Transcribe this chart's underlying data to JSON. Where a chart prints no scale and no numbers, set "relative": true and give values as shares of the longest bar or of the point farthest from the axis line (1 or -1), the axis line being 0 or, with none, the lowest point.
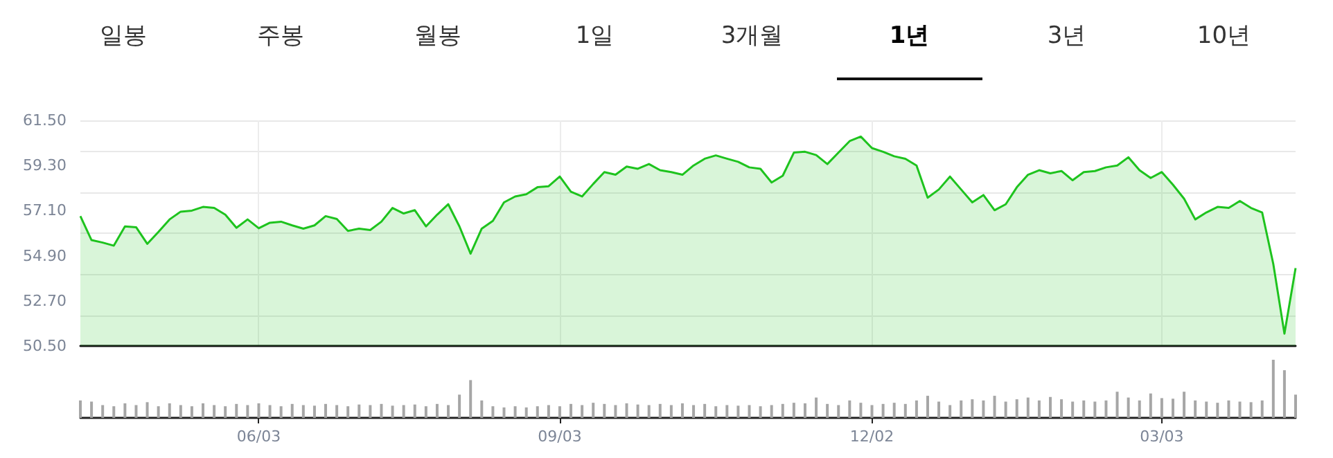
{
  "chart_data": [
    {
      "type": "area",
      "annotations": [
        "일봉",
        "주봉",
        "월봉",
        "1일",
        "3개월",
        "1년",
        "3년",
        "10년"
      ],
      "categories": [
        null,
        null,
        null,
        null,
        null,
        null,
        null,
        null,
        null,
        null,
        null,
        null,
        null,
        null,
        null,
        null,
        null,
        null,
        null,
        null,
        null,
        null,
        null,
        null,
        null,
        null,
        null,
        null,
        null,
        null,
        null,
        null,
        null,
        null,
        null,
        null,
        null,
        null,
        null,
        null,
        null,
        null,
        null,
        null,
        null,
        null,
        null,
        null,
        null,
        null,
        null,
        null,
        null,
        null,
        null,
        null,
        null,
        null,
        null,
        null,
        null,
        null,
        null,
        null,
        null,
        null,
        null,
        null,
        null,
        null,
        null,
        null,
        null,
        null,
        null,
        null,
        null,
        null,
        null,
        null,
        null,
        null,
        null,
        null,
        null,
        null,
        null,
        null,
        null,
        null,
        null,
        null,
        null,
        null,
        null,
        null,
        null,
        null,
        null,
        null,
        null,
        null,
        null,
        null,
        null,
        null,
        null,
        null,
        null,
        null
      ],
      "series": [
        {
          "color": "#1ec31e",
          "values": [
            56.83,
            55.66,
            55.54,
            55.39,
            56.33,
            56.29,
            55.48,
            56.06,
            56.67,
            57.05,
            57.1,
            57.28,
            57.23,
            56.9,
            56.26,
            56.67,
            56.24,
            56.51,
            56.56,
            56.38,
            56.22,
            56.38,
            56.83,
            56.69,
            56.11,
            56.22,
            56.15,
            56.56,
            57.23,
            56.96,
            57.12,
            56.33,
            56.9,
            57.41,
            56.33,
            55.0,
            56.22,
            56.6,
            57.5,
            57.79,
            57.9,
            58.24,
            58.29,
            58.76,
            58.02,
            57.79,
            58.4,
            58.98,
            58.85,
            59.25,
            59.14,
            59.37,
            59.07,
            58.98,
            58.85,
            59.3,
            59.63,
            59.79,
            59.63,
            59.48,
            59.21,
            59.14,
            58.47,
            58.8,
            59.93,
            59.97,
            59.81,
            59.37,
            59.93,
            60.49,
            60.71,
            60.15,
            59.97,
            59.75,
            59.63,
            59.3,
            57.73,
            58.13,
            58.76,
            58.13,
            57.5,
            57.86,
            57.12,
            57.41,
            58.24,
            58.85,
            59.07,
            58.92,
            59.03,
            58.58,
            58.98,
            59.03,
            59.21,
            59.3,
            59.7,
            59.07,
            58.69,
            58.98,
            58.36,
            57.68,
            56.67,
            57.01,
            57.28,
            57.23,
            57.57,
            57.23,
            57.01,
            54.5,
            51.1,
            54.3
          ]
        }
      ],
      "ylim": [
        50.5,
        61.5
      ],
      "yticks": [
        {
          "value": 50.5,
          "label": "50.50"
        },
        {
          "value": 52.7,
          "label": "52.70"
        },
        {
          "value": 54.9,
          "label": "54.90"
        },
        {
          "value": 57.1,
          "label": "57.10"
        },
        {
          "value": 59.3,
          "label": "59.30"
        },
        {
          "value": 61.5,
          "label": "61.50"
        }
      ],
      "grid": true,
      "tick_labels": "y",
      "line_style": "solid"
    },
    {
      "type": "bar",
      "relative": true,
      "categories": [
        null,
        null,
        null,
        null,
        null,
        null,
        null,
        null,
        null,
        null,
        null,
        null,
        null,
        null,
        null,
        null,
        "06/03",
        null,
        null,
        null,
        null,
        null,
        null,
        null,
        null,
        null,
        null,
        null,
        null,
        null,
        null,
        null,
        null,
        null,
        null,
        null,
        null,
        null,
        null,
        null,
        null,
        null,
        null,
        "09/03",
        null,
        null,
        null,
        null,
        null,
        null,
        null,
        null,
        null,
        null,
        null,
        null,
        null,
        null,
        null,
        null,
        null,
        null,
        null,
        null,
        null,
        null,
        null,
        null,
        null,
        null,
        null,
        "12/02",
        null,
        null,
        null,
        null,
        null,
        null,
        null,
        null,
        null,
        null,
        null,
        null,
        null,
        null,
        null,
        null,
        null,
        null,
        null,
        null,
        null,
        null,
        null,
        null,
        null,
        "03/03",
        null,
        null,
        null,
        null,
        null,
        null,
        null,
        null,
        null,
        null,
        null,
        null
      ],
      "series": [
        {
          "color": "#a6a6a6",
          "values": [
            0.3,
            0.28,
            0.22,
            0.2,
            0.25,
            0.22,
            0.27,
            0.2,
            0.25,
            0.22,
            0.2,
            0.25,
            0.22,
            0.2,
            0.24,
            0.22,
            0.25,
            0.22,
            0.2,
            0.24,
            0.22,
            0.21,
            0.24,
            0.22,
            0.2,
            0.23,
            0.22,
            0.24,
            0.21,
            0.22,
            0.23,
            0.2,
            0.24,
            0.22,
            0.4,
            0.65,
            0.3,
            0.2,
            0.18,
            0.2,
            0.18,
            0.2,
            0.22,
            0.2,
            0.24,
            0.22,
            0.26,
            0.24,
            0.22,
            0.25,
            0.23,
            0.22,
            0.24,
            0.22,
            0.25,
            0.22,
            0.24,
            0.2,
            0.22,
            0.21,
            0.22,
            0.2,
            0.22,
            0.24,
            0.26,
            0.25,
            0.35,
            0.24,
            0.22,
            0.3,
            0.26,
            0.22,
            0.24,
            0.26,
            0.24,
            0.3,
            0.38,
            0.28,
            0.22,
            0.3,
            0.32,
            0.3,
            0.38,
            0.28,
            0.32,
            0.35,
            0.3,
            0.36,
            0.32,
            0.28,
            0.3,
            0.28,
            0.3,
            0.45,
            0.35,
            0.3,
            0.42,
            0.34,
            0.33,
            0.45,
            0.3,
            0.28,
            0.26,
            0.3,
            0.28,
            0.27,
            0.3,
            1.0,
            0.82,
            0.4
          ]
        }
      ],
      "grid": false,
      "tick_labels": "x"
    }
  ]
}
